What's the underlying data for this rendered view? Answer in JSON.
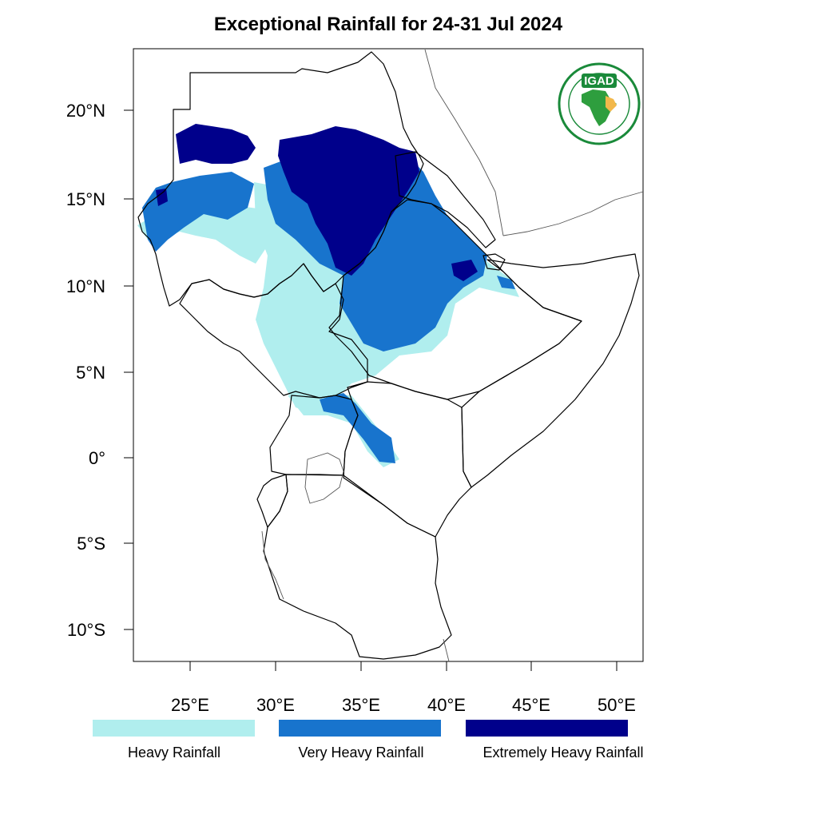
{
  "title": "Exceptional Rainfall for 24-31 Jul 2024",
  "logo": {
    "text": "IGAD",
    "color_ring": "#1a8a3a",
    "color_africa": "#2e9e3e",
    "color_igad_region": "#f2b84b"
  },
  "axes": {
    "lon_ticks": [
      "25°E",
      "30°E",
      "35°E",
      "40°E",
      "45°E",
      "50°E"
    ],
    "lat_ticks": [
      "20°N",
      "15°N",
      "10°N",
      "5°N",
      "0°",
      "5°S",
      "10°S"
    ]
  },
  "legend": {
    "items": [
      {
        "label": "Heavy Rainfall",
        "color": "#b0eeee"
      },
      {
        "label": "Very Heavy Rainfall",
        "color": "#1874cd"
      },
      {
        "label": "Extremely Heavy Rainfall",
        "color": "#00008b"
      }
    ]
  },
  "colors": {
    "heavy": "#b0eeee",
    "very_heavy": "#1874cd",
    "extreme": "#00008b"
  }
}
